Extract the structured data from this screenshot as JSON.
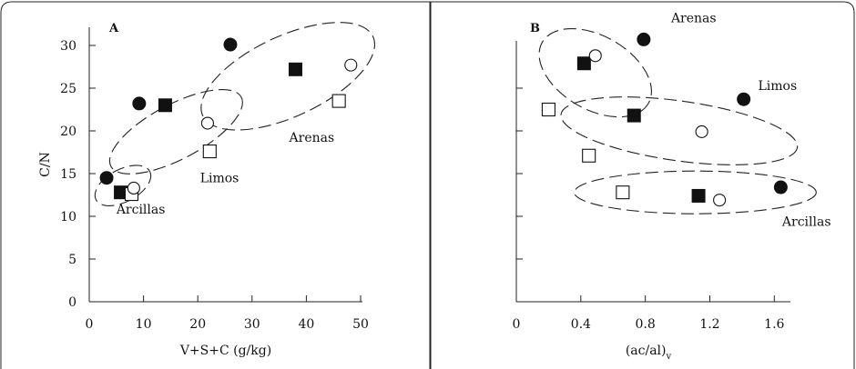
{
  "chart_data": [
    {
      "type": "scatter",
      "panel_label": "A",
      "xlabel": "V+S+C (g/kg)",
      "ylabel": "C/N",
      "xlim": [
        0,
        50
      ],
      "ylim": [
        0,
        30
      ],
      "xticks": [
        "0",
        "10",
        "20",
        "30",
        "40",
        "50"
      ],
      "yticks": [
        "0",
        "5",
        "10",
        "15",
        "20",
        "25",
        "30"
      ],
      "grid": false,
      "points": [
        {
          "marker": "filled-circle",
          "x": 3.2,
          "y": 14.5
        },
        {
          "marker": "filled-square",
          "x": 5.8,
          "y": 12.8
        },
        {
          "marker": "open-square",
          "x": 7.8,
          "y": 12.6
        },
        {
          "marker": "open-circle",
          "x": 8.2,
          "y": 13.3
        },
        {
          "marker": "filled-circle",
          "x": 9.2,
          "y": 23.2
        },
        {
          "marker": "filled-square",
          "x": 14.0,
          "y": 23.0
        },
        {
          "marker": "open-circle",
          "x": 21.8,
          "y": 20.9
        },
        {
          "marker": "open-square",
          "x": 22.2,
          "y": 17.6
        },
        {
          "marker": "filled-circle",
          "x": 26.0,
          "y": 30.1
        },
        {
          "marker": "filled-square",
          "x": 38.0,
          "y": 27.2
        },
        {
          "marker": "open-circle",
          "x": 48.2,
          "y": 27.7
        },
        {
          "marker": "open-square",
          "x": 46.0,
          "y": 23.5
        }
      ],
      "groups": [
        {
          "label": "Arcillas",
          "center": [
            6.2,
            13.6
          ],
          "radii": [
            5.6,
            1.9
          ],
          "rotation": 28,
          "label_pos": [
            9.5,
            10.3
          ]
        },
        {
          "label": "Limos",
          "center": [
            16.0,
            19.9
          ],
          "radii": [
            13.6,
            3.2
          ],
          "rotation": 28,
          "label_pos": [
            24.0,
            14.0
          ]
        },
        {
          "label": "Arenas",
          "center": [
            36.6,
            26.4
          ],
          "radii": [
            17.3,
            4.7
          ],
          "rotation": 25,
          "label_pos": [
            41.0,
            18.7
          ]
        }
      ]
    },
    {
      "type": "scatter",
      "panel_label": "B",
      "xlabel": "(ac/al)",
      "xlabel_subscript": "v",
      "ylabel": "",
      "xlim": [
        0,
        1.7
      ],
      "ylim": [
        0,
        30
      ],
      "xticks": [
        "0",
        "0.4",
        "0.8",
        "1.2",
        "1.6"
      ],
      "yticks": [],
      "grid": false,
      "points": [
        {
          "marker": "open-square",
          "x": 0.2,
          "y": 22.5
        },
        {
          "marker": "filled-square",
          "x": 0.42,
          "y": 27.9
        },
        {
          "marker": "open-circle",
          "x": 0.49,
          "y": 28.8
        },
        {
          "marker": "filled-circle",
          "x": 0.79,
          "y": 30.7
        },
        {
          "marker": "open-square",
          "x": 0.45,
          "y": 17.1
        },
        {
          "marker": "filled-square",
          "x": 0.73,
          "y": 21.8
        },
        {
          "marker": "open-circle",
          "x": 1.15,
          "y": 19.9
        },
        {
          "marker": "filled-circle",
          "x": 1.41,
          "y": 23.7
        },
        {
          "marker": "open-square",
          "x": 0.66,
          "y": 12.8
        },
        {
          "marker": "filled-square",
          "x": 1.13,
          "y": 12.4
        },
        {
          "marker": "open-circle",
          "x": 1.26,
          "y": 11.9
        },
        {
          "marker": "filled-circle",
          "x": 1.64,
          "y": 13.4
        }
      ],
      "groups": [
        {
          "label": "Arenas",
          "center": [
            0.49,
            26.8
          ],
          "radii": [
            0.38,
            4.3
          ],
          "rotation": -30,
          "label_pos": [
            1.1,
            32.7
          ]
        },
        {
          "label": "Limos",
          "center": [
            1.01,
            20.0
          ],
          "radii": [
            0.74,
            3.5
          ],
          "rotation": -8,
          "label_pos": [
            1.62,
            24.8
          ]
        },
        {
          "label": "Arcillas",
          "center": [
            1.11,
            12.8
          ],
          "radii": [
            0.75,
            2.5
          ],
          "rotation": 0,
          "label_pos": [
            1.8,
            8.9
          ]
        }
      ]
    }
  ]
}
